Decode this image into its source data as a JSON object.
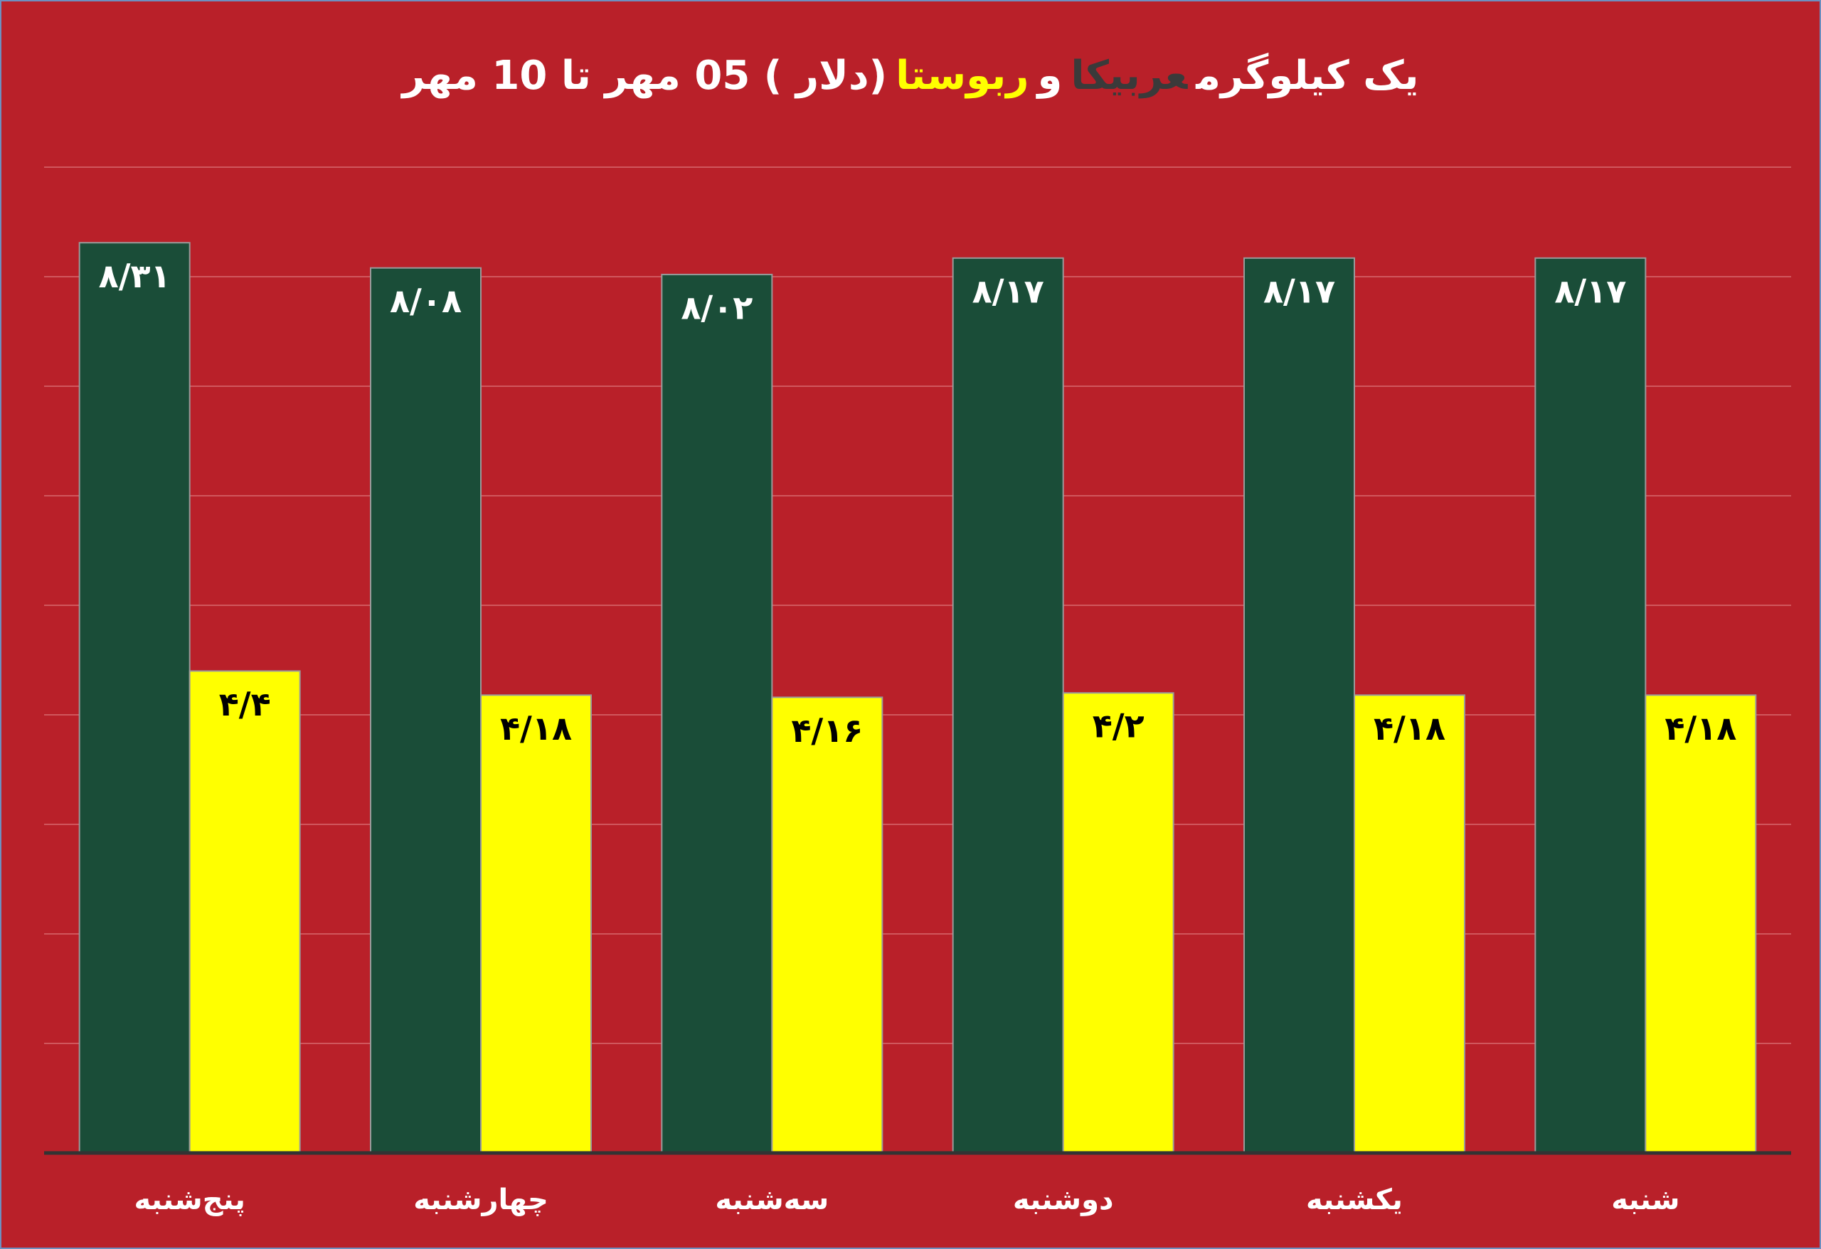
{
  "chart_data": {
    "type": "bar",
    "title_parts": [
      "یک کیلوگرم",
      "و",
      "(دلار ) 05 مهر  تا 10 مهر"
    ],
    "categories": [
      "پنج‌شنبه",
      "چهارشنبه",
      "سه‌شنبه",
      "دوشنبه",
      "یکشنبه",
      "شنبه"
    ],
    "series": [
      {
        "name": "عربیکا",
        "color": "#1a4d38",
        "label_color": "#ffffff",
        "values": [
          8.31,
          8.08,
          8.02,
          8.17,
          8.17,
          8.17
        ],
        "value_labels": [
          "۸/۳۱",
          "۸/۰۸",
          "۸/۰۲",
          "۸/۱۷",
          "۸/۱۷",
          "۸/۱۷"
        ]
      },
      {
        "name": "ربوستا",
        "color": "#ffff00",
        "label_color": "#000000",
        "values": [
          4.4,
          4.18,
          4.16,
          4.2,
          4.18,
          4.18
        ],
        "value_labels": [
          "۴/۴",
          "۴/۱۸",
          "۴/۱۶",
          "۴/۲",
          "۴/۱۸",
          "۴/۱۸"
        ]
      }
    ],
    "ylim": [
      0,
      9
    ],
    "yticks": [
      0,
      1,
      2,
      3,
      4,
      5,
      6,
      7,
      8,
      9
    ],
    "grid": true
  }
}
